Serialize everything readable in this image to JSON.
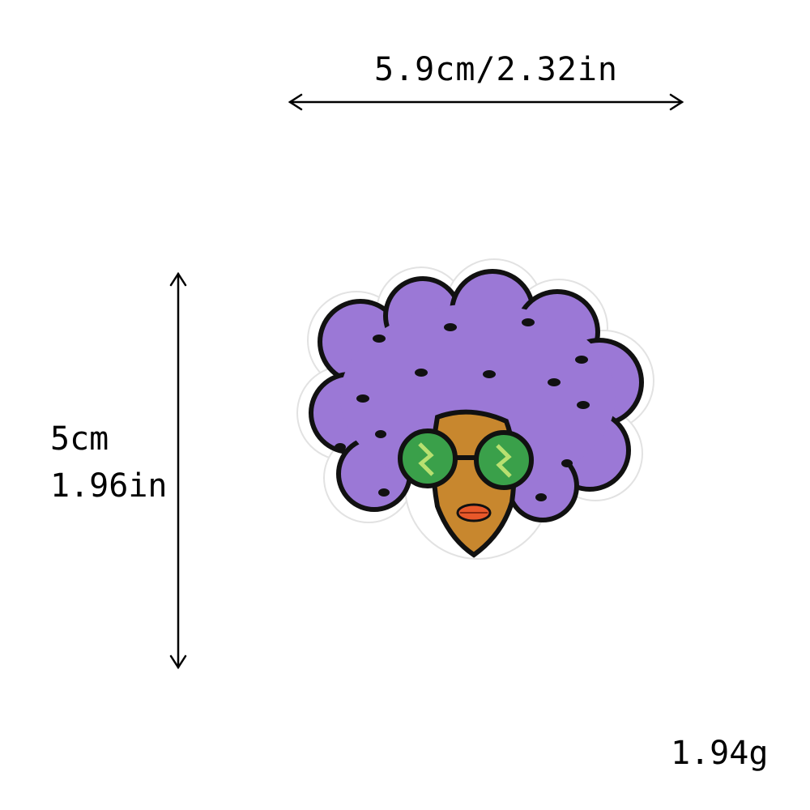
{
  "dimensions": {
    "width_label": "5.9cm/2.32in",
    "height_cm_label": "5cm",
    "height_in_label": "1.96in"
  },
  "weight_label": "1.94g",
  "colors": {
    "hair": "#9b78d6",
    "hair_shadow": "#7d5cbf",
    "skin": "#c8872e",
    "lens": "#3aa04a",
    "lips": "#e8582a",
    "outline": "#111111"
  }
}
